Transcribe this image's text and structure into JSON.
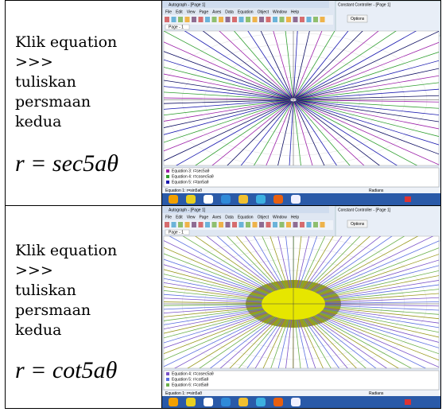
{
  "rows": [
    {
      "lines": [
        "Klik equation",
        ">>>",
        "tuliskan",
        "persmaan",
        "kedua"
      ],
      "formula": "r = sec5aθ",
      "screenshot": {
        "title": "Autograph - [Page 1]",
        "menu": [
          "File",
          "Edit",
          "View",
          "Page",
          "Axes",
          "Data",
          "Equation",
          "Object",
          "Window",
          "Help"
        ],
        "tab": "Page - 1",
        "controller": "Constant Controller - [Page 1]",
        "options": "Options",
        "legend": [
          "Equation 3: r=sec5aθ",
          "Equation 4: r=cosec5aθ",
          "Equation 5: r=tan5aθ"
        ],
        "status": "Equation 1: r=sin5aθ",
        "mode": "Radians"
      }
    },
    {
      "lines": [
        "Klik equation",
        ">>>",
        "tuliskan",
        "persmaan",
        "kedua"
      ],
      "formula": "r = cot5aθ",
      "screenshot": {
        "title": "Autograph - [Page 1]",
        "menu": [
          "File",
          "Edit",
          "View",
          "Page",
          "Axes",
          "Data",
          "Equation",
          "Object",
          "Window",
          "Help"
        ],
        "tab": "Page - 1",
        "controller": "Constant Controller - [Page 1]",
        "options": "Options",
        "legend": [
          "Equation 4: r=cosec5aθ",
          "Equation 5: r=cot5aθ",
          "Equation 6: r=cot5aθ"
        ],
        "status": "Equation 1: r=sin5aθ",
        "mode": "Radians"
      }
    }
  ]
}
